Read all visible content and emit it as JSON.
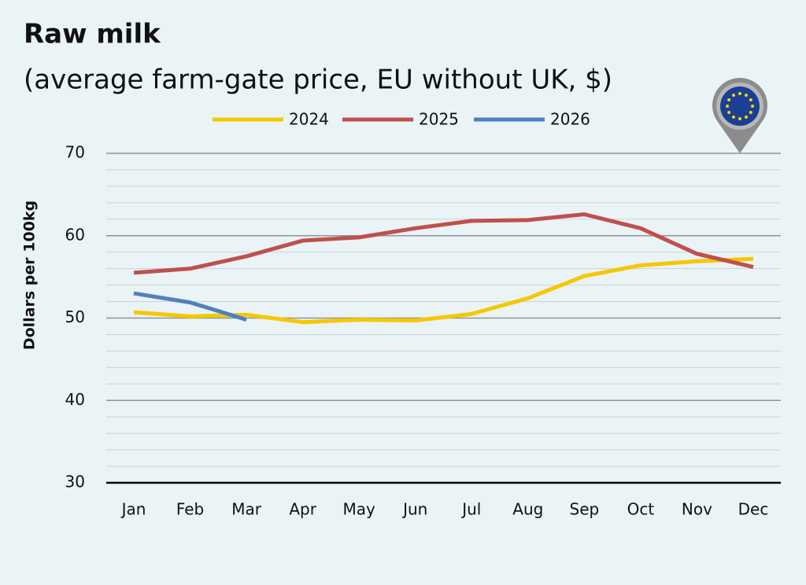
{
  "chart_data": {
    "type": "line",
    "title": "Raw milk",
    "subtitle": "(average farm-gate price, EU without UK, $)",
    "y_label": "Dollars per 100kg",
    "categories": [
      "Jan",
      "Feb",
      "Mar",
      "Apr",
      "May",
      "Jun",
      "Jul",
      "Aug",
      "Sep",
      "Oct",
      "Nov",
      "Dec"
    ],
    "series": [
      {
        "name": "2024",
        "color": "#f5c800",
        "values": [
          50.7,
          50.2,
          50.4,
          49.5,
          49.8,
          49.7,
          50.5,
          52.4,
          55.1,
          56.4,
          56.9,
          57.2
        ]
      },
      {
        "name": "2025",
        "color": "#c0504d",
        "values": [
          55.5,
          56.0,
          57.5,
          59.4,
          59.8,
          60.9,
          61.8,
          61.9,
          62.6,
          60.9,
          57.8,
          56.2
        ]
      },
      {
        "name": "2026",
        "color": "#4f81bd",
        "values": [
          53.0,
          51.9,
          49.8,
          null,
          null,
          null,
          null,
          null,
          null,
          null,
          null,
          null
        ]
      }
    ],
    "ylim": [
      30,
      70
    ],
    "yticks": [
      30,
      40,
      50,
      60,
      70
    ],
    "yticks_minor": [
      32,
      34,
      36,
      38,
      42,
      44,
      46,
      48,
      52,
      54,
      56,
      58,
      62,
      64,
      66,
      68
    ],
    "grid": true,
    "legend": "top"
  }
}
